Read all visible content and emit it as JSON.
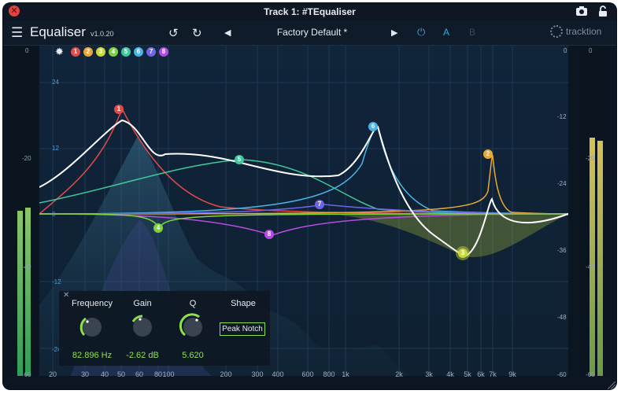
{
  "window": {
    "title": "Track 1: #TEqualiser"
  },
  "toolbar": {
    "plugin_name": "Equaliser",
    "version": "v1.0.20",
    "preset_name": "Factory Default *",
    "ab_a": "A",
    "ab_b": "B",
    "brand": "tracktion",
    "icons": [
      "menu-icon",
      "undo-icon",
      "redo-icon",
      "prev-preset-icon",
      "next-preset-icon",
      "power-icon",
      "camera-icon",
      "lock-icon",
      "close-icon",
      "settings-icon"
    ]
  },
  "bands": [
    {
      "label": "1",
      "color": "#e14b4b"
    },
    {
      "label": "2",
      "color": "#e8a93a"
    },
    {
      "label": "3",
      "color": "#c9d93a"
    },
    {
      "label": "4",
      "color": "#7fd23f"
    },
    {
      "label": "5",
      "color": "#3fc99a"
    },
    {
      "label": "6",
      "color": "#4ab4e6"
    },
    {
      "label": "7",
      "color": "#6e64e8"
    },
    {
      "label": "8",
      "color": "#b64be0"
    }
  ],
  "meter_scale": {
    "top": "0",
    "mid1": "-20",
    "mid2": "-40",
    "bottom": "-60"
  },
  "gain_scale_left": {
    "top": "24",
    "mid1": "12",
    "zero": "0",
    "mid2": "-12",
    "bottom": "-24"
  },
  "db_scale_right": {
    "top": "0",
    "a": "-12",
    "b": "-24",
    "c": "-36",
    "d": "-48",
    "bottom": "-60"
  },
  "freq_labels": [
    "20",
    "30",
    "40",
    "50",
    "60",
    "80",
    "100",
    "200",
    "300",
    "400",
    "600",
    "800",
    "1k",
    "2k",
    "3k",
    "4k",
    "5k",
    "6k",
    "7k",
    "9k"
  ],
  "panel": {
    "freq_header": "Frequency",
    "gain_header": "Gain",
    "q_header": "Q",
    "shape_header": "Shape",
    "freq_value": "82.896 Hz",
    "gain_value": "-2.62 dB",
    "q_value": "5.620",
    "shape_value": "Peak Notch"
  },
  "meters": {
    "left_levels": [
      0.79,
      0.8
    ],
    "right_levels": [
      0.93,
      0.92
    ],
    "colors": [
      "#2f9e5a",
      "#d4c25a"
    ]
  }
}
